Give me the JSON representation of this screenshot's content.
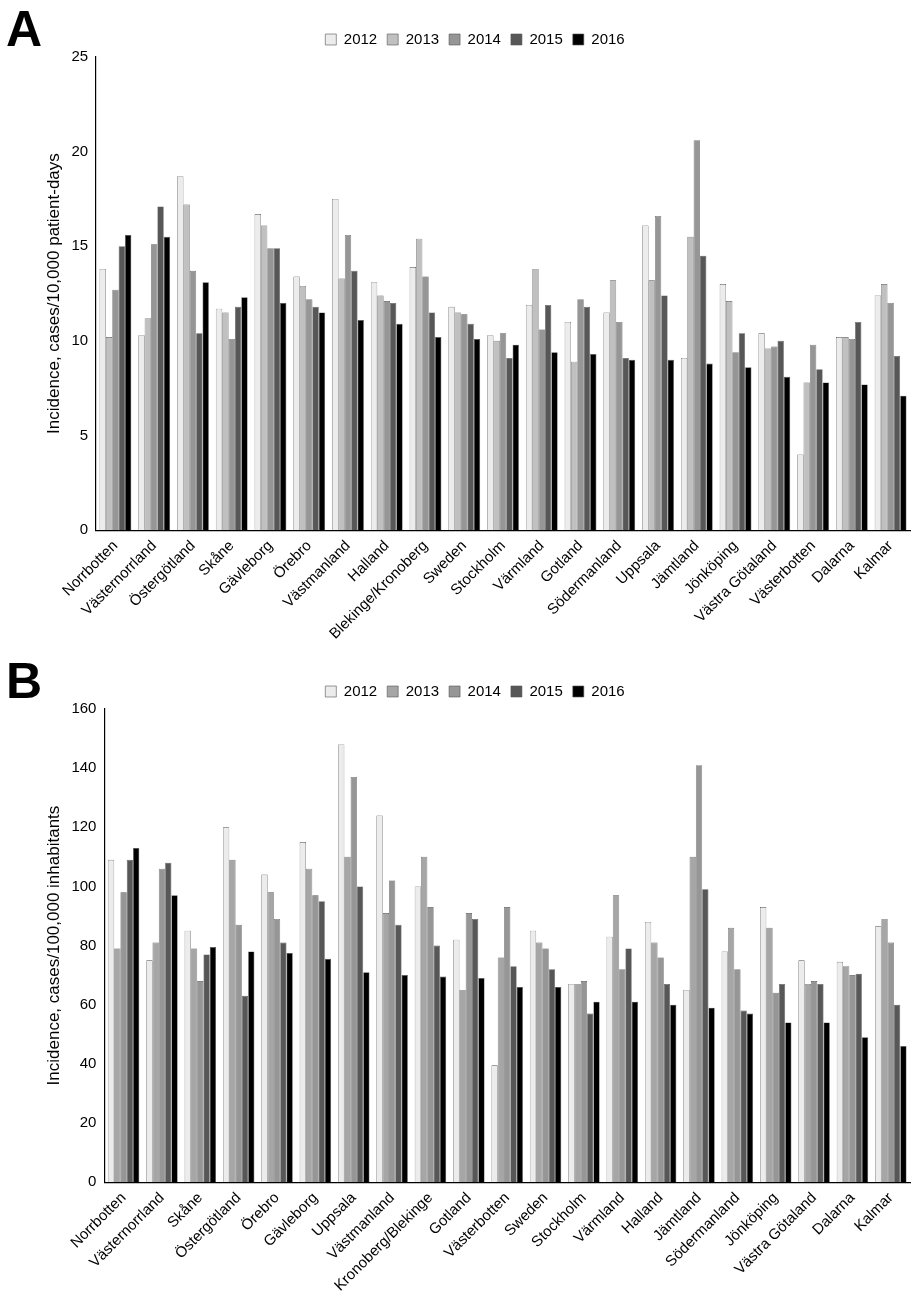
{
  "chart_data": [
    {
      "type": "bar",
      "title": "A",
      "ylabel": "Incidence, cases/10,000 patient-days",
      "categories": [
        "Norrbotten",
        "Västernorrland",
        "Östergötland",
        "Skåne",
        "Gävleborg",
        "Örebro",
        "Västmanland",
        "Halland",
        "Blekinge/Kronoberg",
        "Sweden",
        "Stockholm",
        "Värmland",
        "Gotland",
        "Södermanland",
        "Uppsala",
        "Jämtland",
        "Jönköping",
        "Västra Götaland",
        "Västerbotten",
        "Dalarna",
        "Kalmar"
      ],
      "series": [
        {
          "name": "2012",
          "color": "#ececec",
          "values": [
            13.8,
            10.3,
            18.7,
            11.7,
            16.7,
            13.4,
            17.5,
            13.1,
            13.9,
            11.8,
            10.3,
            11.9,
            11.0,
            11.5,
            16.1,
            9.1,
            13.0,
            10.4,
            4.0,
            10.2,
            12.4
          ]
        },
        {
          "name": "2013",
          "color": "#c0c0c0",
          "values": [
            10.2,
            11.2,
            17.2,
            11.5,
            16.1,
            12.9,
            13.3,
            12.4,
            15.4,
            11.5,
            10.0,
            13.8,
            8.9,
            13.2,
            13.2,
            15.5,
            12.1,
            9.6,
            7.8,
            10.2,
            13.0
          ]
        },
        {
          "name": "2014",
          "color": "#969696",
          "values": [
            12.7,
            15.1,
            13.7,
            10.1,
            14.9,
            12.2,
            15.6,
            12.1,
            13.4,
            11.4,
            10.4,
            10.6,
            12.2,
            11.0,
            16.6,
            20.6,
            9.4,
            9.7,
            9.8,
            10.1,
            12.0
          ]
        },
        {
          "name": "2015",
          "color": "#575757",
          "values": [
            15.0,
            17.1,
            10.4,
            11.8,
            14.9,
            11.8,
            13.7,
            12.0,
            11.5,
            10.9,
            9.1,
            11.9,
            11.8,
            9.1,
            12.4,
            14.5,
            10.4,
            10.0,
            8.5,
            11.0,
            9.2
          ]
        },
        {
          "name": "2016",
          "color": "#000000",
          "values": [
            15.6,
            15.5,
            13.1,
            12.3,
            12.0,
            11.5,
            11.1,
            10.9,
            10.2,
            10.1,
            9.8,
            9.4,
            9.3,
            9.0,
            9.0,
            8.8,
            8.6,
            8.1,
            7.8,
            7.7,
            7.1
          ]
        }
      ],
      "ylim": [
        0,
        25
      ],
      "yticks": [
        0,
        5,
        10,
        15,
        20,
        25
      ],
      "grid": false,
      "legend": "top"
    },
    {
      "type": "bar",
      "title": "B",
      "ylabel": "Incidence, cases/100,000 inhabitants",
      "categories": [
        "Norrbotten",
        "Västernorrland",
        "Skåne",
        "Östergötland",
        "Örebro",
        "Gävleborg",
        "Uppsala",
        "Västmanland",
        "Kronoberg/Blekinge",
        "Gotland",
        "Västerbotten",
        "Sweden",
        "Stockholm",
        "Värmland",
        "Halland",
        "Jämtland",
        "Södermanland",
        "Jönköping",
        "Västra Götaland",
        "Dalarna",
        "Kalmar"
      ],
      "series": [
        {
          "name": "2012",
          "color": "#ececec",
          "values": [
            109,
            75,
            85,
            120,
            104,
            115,
            148,
            124,
            100,
            82,
            39.5,
            85,
            67,
            83,
            88,
            65,
            78,
            93,
            75,
            74.5,
            86.5
          ]
        },
        {
          "name": "2013",
          "color": "#a6a6a6",
          "values": [
            79,
            81,
            79,
            109,
            98,
            106,
            110,
            91,
            110,
            65,
            76,
            81,
            67,
            97,
            81,
            110,
            86,
            86,
            67,
            73,
            89
          ]
        },
        {
          "name": "2014",
          "color": "#969696",
          "values": [
            98,
            106,
            68,
            87,
            89,
            97,
            137,
            102,
            93,
            91,
            93,
            79,
            68,
            72,
            76,
            141,
            72,
            64,
            68,
            70,
            81
          ]
        },
        {
          "name": "2015",
          "color": "#575757",
          "values": [
            109,
            108,
            77,
            63,
            81,
            95,
            100,
            87,
            80,
            89,
            73,
            72,
            57,
            79,
            67,
            99,
            58,
            67,
            67,
            70.5,
            60
          ]
        },
        {
          "name": "2016",
          "color": "#000000",
          "values": [
            113,
            97,
            79.5,
            78,
            77.5,
            75.5,
            71,
            70,
            69.5,
            69,
            66,
            66,
            61,
            61,
            60,
            59,
            57,
            54,
            54,
            49,
            46
          ]
        }
      ],
      "ylim": [
        0,
        160
      ],
      "yticks": [
        0,
        20,
        40,
        60,
        80,
        100,
        120,
        140,
        160
      ],
      "grid": false,
      "legend": "top"
    }
  ]
}
